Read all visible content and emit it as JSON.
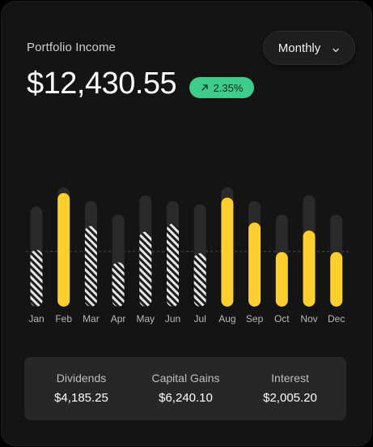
{
  "header": {
    "title": "Portfolio Income",
    "period_label": "Monthly",
    "amount": "$12,430.55",
    "change": "2.35%"
  },
  "colors": {
    "background": "#151415",
    "accent_bar": "#fccf2f",
    "track": "#2a2a2a",
    "badge": "#3fcc8a"
  },
  "chart_data": {
    "type": "bar",
    "categories": [
      "Jan",
      "Feb",
      "Mar",
      "Apr",
      "May",
      "Jun",
      "Jul",
      "Aug",
      "Sep",
      "Oct",
      "Nov",
      "Dec"
    ],
    "values": [
      0.5,
      1.0,
      0.71,
      0.39,
      0.66,
      0.73,
      0.47,
      0.96,
      0.74,
      0.48,
      0.67,
      0.48
    ],
    "track": [
      0.88,
      1.05,
      0.93,
      0.81,
      0.98,
      0.93,
      0.9,
      1.05,
      0.93,
      0.81,
      0.98,
      0.81
    ],
    "styles": [
      "hatched",
      "solid",
      "hatched",
      "hatched",
      "hatched",
      "hatched",
      "hatched",
      "solid",
      "solid",
      "solid",
      "solid",
      "solid"
    ],
    "grid": false,
    "reference_line": true
  },
  "stats": [
    {
      "label": "Dividends",
      "value": "$4,185.25"
    },
    {
      "label": "Capital Gains",
      "value": "$6,240.10"
    },
    {
      "label": "Interest",
      "value": "$2,005.20"
    }
  ]
}
